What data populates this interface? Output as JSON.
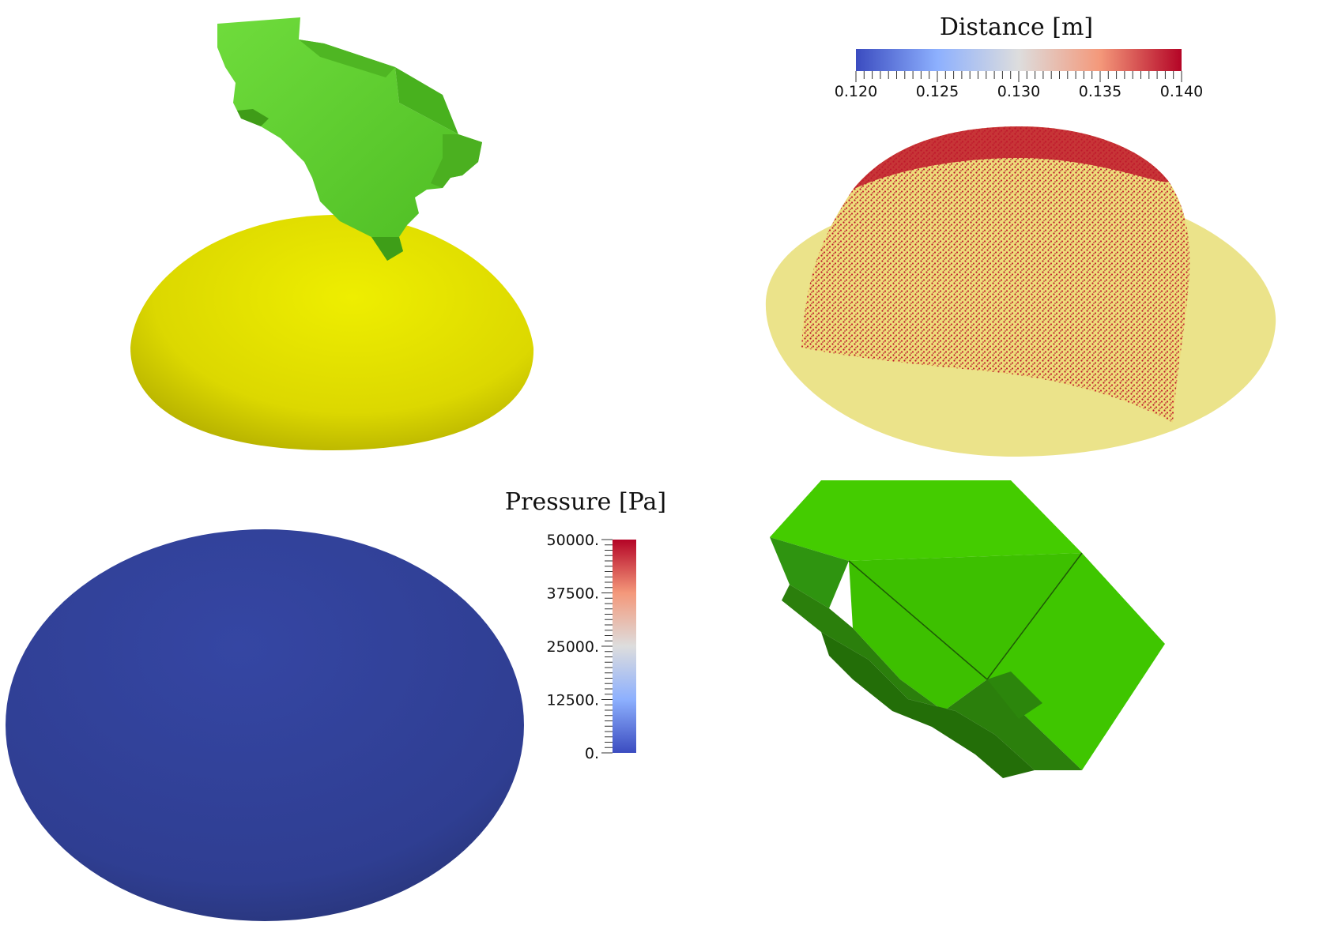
{
  "colorbars": {
    "distance": {
      "title": "Distance [m]",
      "ticks": [
        "0.120",
        "0.125",
        "0.130",
        "0.135",
        "0.140"
      ],
      "range": [
        0.12,
        0.14
      ]
    },
    "pressure": {
      "title": "Pressure [Pa]",
      "ticks": [
        "50000.",
        "37500.",
        "25000.",
        "12500.",
        "0."
      ],
      "range": [
        0,
        50000
      ]
    }
  },
  "colors": {
    "green_part": "#5dd12e",
    "green_dark": "#2f8f10",
    "yellow_surface": "#e8e600",
    "pale_yellow_surface": "#ebe38a",
    "blue_surface": "#2f3f96",
    "colormap_low": "#3b4cc0",
    "colormap_mid": "#dddddd",
    "colormap_high": "#b40426"
  }
}
